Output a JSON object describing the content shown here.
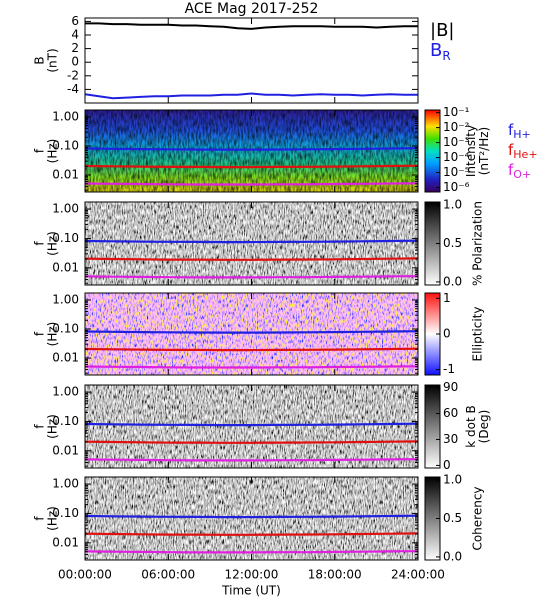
{
  "chart_data": [
    {
      "type": "line",
      "title": "ACE Mag 2017-252",
      "ylabel": [
        "B",
        "(nT)"
      ],
      "x": [
        0,
        1,
        2,
        3,
        4,
        5,
        6,
        7,
        8,
        9,
        10,
        11,
        12,
        13,
        14,
        15,
        16,
        17,
        18,
        19,
        20,
        21,
        22,
        23,
        24
      ],
      "xlim": [
        0,
        24
      ],
      "xticks": [
        0,
        6,
        12,
        18,
        24
      ],
      "ylim": [
        -6,
        6.5
      ],
      "yticks": [
        -4,
        -2,
        0,
        2,
        4,
        6
      ],
      "series": [
        {
          "name": "|B|",
          "color": "#000000",
          "values": [
            5.7,
            5.7,
            5.6,
            5.6,
            5.5,
            5.5,
            5.5,
            5.4,
            5.4,
            5.3,
            5.2,
            5.0,
            4.9,
            5.1,
            5.2,
            5.3,
            5.3,
            5.3,
            5.2,
            5.2,
            5.2,
            5.1,
            5.2,
            5.3,
            5.3
          ]
        },
        {
          "name": "B",
          "subscript": "R",
          "color": "#2020e0",
          "values": [
            -4.7,
            -5.0,
            -5.3,
            -5.2,
            -5.1,
            -5.0,
            -5.0,
            -4.9,
            -4.9,
            -4.9,
            -4.8,
            -4.8,
            -4.6,
            -4.8,
            -4.8,
            -4.9,
            -4.8,
            -4.7,
            -4.8,
            -4.8,
            -4.9,
            -4.8,
            -4.7,
            -4.8,
            -4.8
          ]
        }
      ]
    },
    {
      "type": "spectrogram",
      "palette": "rainbow",
      "ylabel": [
        "f",
        "(Hz)"
      ],
      "log_y": true,
      "x": [
        0,
        2,
        4,
        6,
        8,
        10,
        12,
        14,
        16,
        18,
        20,
        22,
        24
      ],
      "xlim": [
        0,
        24
      ],
      "xticks": [
        0,
        6,
        12,
        18,
        24
      ],
      "ylim": [
        0.0026,
        1.74
      ],
      "yticks": [
        {
          "value": 1,
          "label": "1.00"
        },
        {
          "value": 0.1,
          "label": "0.10"
        },
        {
          "value": 0.01,
          "label": "0.01"
        }
      ],
      "colorbar": {
        "label": [
          "Intensity",
          "(nT²/Hz)"
        ],
        "log": true,
        "clim": [
          5e-07,
          0.15
        ],
        "ticks": [
          {
            "value": 0.1,
            "label": "10⁻¹"
          },
          {
            "value": 0.01,
            "label": "10⁻²"
          },
          {
            "value": 0.001,
            "label": "10⁻³"
          },
          {
            "value": 0.0001,
            "label": "10⁻⁴"
          },
          {
            "value": 1e-05,
            "label": "10⁻⁵"
          },
          {
            "value": 1e-06,
            "label": "10⁻⁶"
          }
        ]
      },
      "legend": true,
      "series": [
        {
          "name": "f",
          "subscript": "H+",
          "color": "#2020e0",
          "values": [
            0.082,
            0.08,
            0.078,
            0.077,
            0.076,
            0.075,
            0.075,
            0.076,
            0.077,
            0.078,
            0.08,
            0.082,
            0.084
          ]
        },
        {
          "name": "f",
          "subscript": "He+",
          "color": "#e01010",
          "values": [
            0.0205,
            0.02,
            0.0195,
            0.019,
            0.019,
            0.0188,
            0.0188,
            0.019,
            0.0192,
            0.0195,
            0.02,
            0.0205,
            0.021
          ]
        },
        {
          "name": "f",
          "subscript": "O+",
          "color": "#e020e0",
          "values": [
            0.0051,
            0.005,
            0.0049,
            0.0048,
            0.0047,
            0.0047,
            0.0047,
            0.0048,
            0.0048,
            0.0049,
            0.005,
            0.0051,
            0.0052
          ]
        }
      ]
    },
    {
      "type": "spectrogram",
      "palette": "gray",
      "ylabel": [
        "f",
        "(Hz)"
      ],
      "log_y": true,
      "x": [
        0,
        2,
        4,
        6,
        8,
        10,
        12,
        14,
        16,
        18,
        20,
        22,
        24
      ],
      "xlim": [
        0,
        24
      ],
      "xticks": [
        0,
        6,
        12,
        18,
        24
      ],
      "ylim": [
        0.0026,
        1.74
      ],
      "yticks": [
        {
          "value": 1,
          "label": "1.00"
        },
        {
          "value": 0.1,
          "label": "0.10"
        },
        {
          "value": 0.01,
          "label": "0.01"
        }
      ],
      "colorbar": {
        "label": [
          "% Polarization"
        ],
        "clim": [
          -0.04,
          1.04
        ],
        "ticks": [
          {
            "value": 1,
            "label": "1.0"
          },
          0.5,
          {
            "value": 0,
            "label": "0.0"
          }
        ]
      },
      "series": [
        {
          "color": "#2020e0",
          "values": [
            0.082,
            0.08,
            0.078,
            0.077,
            0.076,
            0.075,
            0.075,
            0.076,
            0.077,
            0.078,
            0.08,
            0.082,
            0.084
          ]
        },
        {
          "color": "#e01010",
          "values": [
            0.0205,
            0.02,
            0.0195,
            0.019,
            0.019,
            0.0188,
            0.0188,
            0.019,
            0.0192,
            0.0195,
            0.02,
            0.0205,
            0.021
          ]
        },
        {
          "color": "#e020e0",
          "values": [
            0.0051,
            0.005,
            0.0049,
            0.0048,
            0.0047,
            0.0047,
            0.0047,
            0.0048,
            0.0048,
            0.0049,
            0.005,
            0.0051,
            0.0052
          ]
        }
      ]
    },
    {
      "type": "spectrogram",
      "palette": "redblue",
      "ylabel": [
        "f",
        "(Hz)"
      ],
      "log_y": true,
      "x": [
        0,
        2,
        4,
        6,
        8,
        10,
        12,
        14,
        16,
        18,
        20,
        22,
        24
      ],
      "xlim": [
        0,
        24
      ],
      "xticks": [
        0,
        6,
        12,
        18,
        24
      ],
      "ylim": [
        0.0026,
        1.74
      ],
      "yticks": [
        {
          "value": 1,
          "label": "1.00"
        },
        {
          "value": 0.1,
          "label": "0.10"
        },
        {
          "value": 0.01,
          "label": "0.01"
        }
      ],
      "colorbar": {
        "label": [
          "Ellipticity"
        ],
        "clim": [
          -1.15,
          1.15
        ],
        "ticks": [
          1,
          0,
          -1
        ]
      },
      "series": [
        {
          "color": "#2020e0",
          "values": [
            0.082,
            0.08,
            0.078,
            0.077,
            0.076,
            0.075,
            0.075,
            0.076,
            0.077,
            0.078,
            0.08,
            0.082,
            0.084
          ]
        },
        {
          "color": "#e01010",
          "values": [
            0.0205,
            0.02,
            0.0195,
            0.019,
            0.019,
            0.0188,
            0.0188,
            0.019,
            0.0192,
            0.0195,
            0.02,
            0.0205,
            0.021
          ]
        },
        {
          "color": "#e020e0",
          "values": [
            0.0051,
            0.005,
            0.0049,
            0.0048,
            0.0047,
            0.0047,
            0.0047,
            0.0048,
            0.0048,
            0.0049,
            0.005,
            0.0051,
            0.0052
          ]
        }
      ]
    },
    {
      "type": "spectrogram",
      "palette": "gray",
      "ylabel": [
        "f",
        "(Hz)"
      ],
      "log_y": true,
      "x": [
        0,
        2,
        4,
        6,
        8,
        10,
        12,
        14,
        16,
        18,
        20,
        22,
        24
      ],
      "xlim": [
        0,
        24
      ],
      "xticks": [
        0,
        6,
        12,
        18,
        24
      ],
      "ylim": [
        0.0026,
        1.74
      ],
      "yticks": [
        {
          "value": 1,
          "label": "1.00"
        },
        {
          "value": 0.1,
          "label": "0.10"
        },
        {
          "value": 0.01,
          "label": "0.01"
        }
      ],
      "colorbar": {
        "label": [
          "k dot B",
          "(Deg)"
        ],
        "clim": [
          -3,
          93
        ],
        "ticks": [
          90,
          60,
          30,
          0
        ]
      },
      "series": [
        {
          "color": "#2020e0",
          "values": [
            0.082,
            0.08,
            0.078,
            0.077,
            0.076,
            0.075,
            0.075,
            0.076,
            0.077,
            0.078,
            0.08,
            0.082,
            0.084
          ]
        },
        {
          "color": "#e01010",
          "values": [
            0.0205,
            0.02,
            0.0195,
            0.019,
            0.019,
            0.0188,
            0.0188,
            0.019,
            0.0192,
            0.0195,
            0.02,
            0.0205,
            0.021
          ]
        },
        {
          "color": "#e020e0",
          "values": [
            0.0051,
            0.005,
            0.0049,
            0.0048,
            0.0047,
            0.0047,
            0.0047,
            0.0048,
            0.0048,
            0.0049,
            0.005,
            0.0051,
            0.0052
          ]
        }
      ]
    },
    {
      "type": "spectrogram",
      "palette": "gray",
      "ylabel": [
        "f",
        "(Hz)"
      ],
      "log_y": true,
      "x": [
        0,
        2,
        4,
        6,
        8,
        10,
        12,
        14,
        16,
        18,
        20,
        22,
        24
      ],
      "xlim": [
        0,
        24
      ],
      "xticks": [
        {
          "value": 0,
          "label": "00:00:00"
        },
        {
          "value": 6,
          "label": "06:00:00"
        },
        {
          "value": 12,
          "label": "12:00:00"
        },
        {
          "value": 18,
          "label": "18:00:00"
        },
        {
          "value": 24,
          "label": "24:00:00"
        }
      ],
      "xlabel": "Time (UT)",
      "ylim": [
        0.0026,
        1.74
      ],
      "yticks": [
        {
          "value": 1,
          "label": "1.00"
        },
        {
          "value": 0.1,
          "label": "0.10"
        },
        {
          "value": 0.01,
          "label": "0.01"
        }
      ],
      "colorbar": {
        "label": [
          "Coherency"
        ],
        "clim": [
          -0.04,
          1.04
        ],
        "ticks": [
          {
            "value": 1,
            "label": "1.0"
          },
          0.5,
          {
            "value": 0,
            "label": "0.0"
          }
        ]
      },
      "series": [
        {
          "color": "#2020e0",
          "values": [
            0.082,
            0.08,
            0.078,
            0.077,
            0.076,
            0.075,
            0.075,
            0.076,
            0.077,
            0.078,
            0.08,
            0.082,
            0.084
          ]
        },
        {
          "color": "#e01010",
          "values": [
            0.0205,
            0.02,
            0.0195,
            0.019,
            0.019,
            0.0188,
            0.0188,
            0.019,
            0.0192,
            0.0195,
            0.02,
            0.0205,
            0.021
          ]
        },
        {
          "color": "#e020e0",
          "values": [
            0.0051,
            0.005,
            0.0049,
            0.0048,
            0.0047,
            0.0047,
            0.0047,
            0.0048,
            0.0048,
            0.0049,
            0.005,
            0.0051,
            0.0052
          ]
        }
      ]
    }
  ]
}
